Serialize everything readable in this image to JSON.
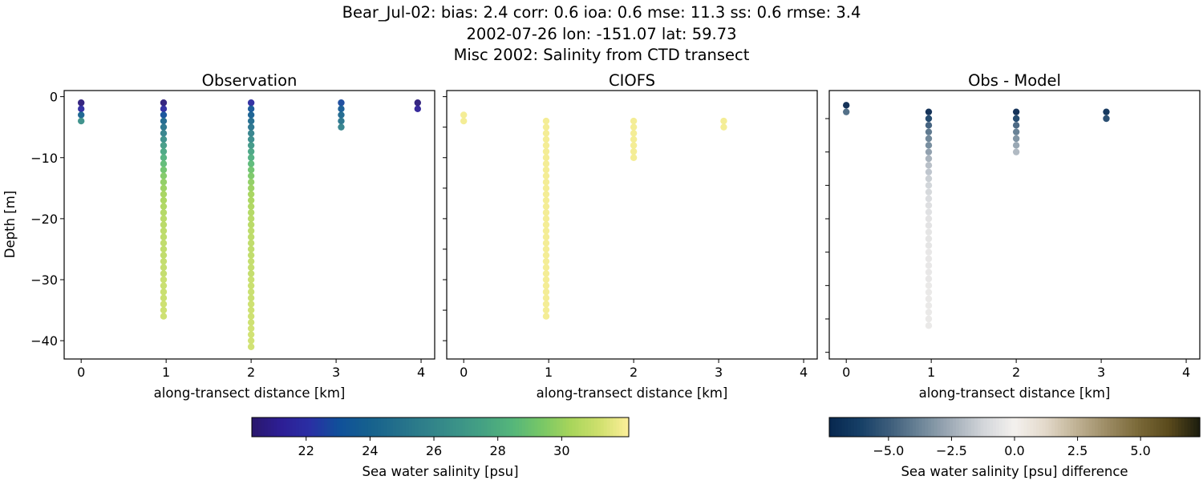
{
  "title_lines": [
    "Bear_Jul-02: bias: 2.4  corr: 0.6  ioa: 0.6  mse: 11.3  ss: 0.6  rmse: 3.4",
    "2002-07-26 lon: -151.07 lat: 59.73",
    "Misc 2002: Salinity from CTD transect"
  ],
  "chart_data": [
    {
      "type": "scatter",
      "title": "Observation",
      "xlabel": "along-transect distance [km]",
      "ylabel": "Depth [m]",
      "xlim": [
        -0.2,
        4.16
      ],
      "ylim": [
        -43,
        1
      ],
      "xticks": [
        "0",
        "1",
        "2",
        "3",
        "4"
      ],
      "yticks": [
        "0",
        "−10",
        "−20",
        "−30",
        "−40"
      ],
      "ytick_values": [
        0,
        -10,
        -20,
        -30,
        -40
      ],
      "colormap": "haline",
      "clim": [
        20.3,
        32.1
      ],
      "profiles": [
        {
          "x": 0,
          "depths": [
            -1,
            -2,
            -3,
            -4
          ],
          "values": [
            20.6,
            21.8,
            24.0,
            26.5
          ]
        },
        {
          "x": 0.97,
          "depths": [
            -1,
            -2,
            -3,
            -4,
            -5,
            -6,
            -7,
            -8,
            -9,
            -10,
            -11,
            -12,
            -13,
            -14,
            -15,
            -16,
            -17,
            -18,
            -19,
            -20,
            -21,
            -22,
            -23,
            -24,
            -25,
            -26,
            -27,
            -28,
            -29,
            -30,
            -31,
            -32,
            -33,
            -34,
            -35,
            -36
          ],
          "values": [
            20.6,
            21.8,
            23.0,
            24.3,
            25.0,
            25.8,
            26.5,
            27.2,
            27.7,
            28.2,
            28.7,
            29.1,
            29.5,
            29.8,
            30.0,
            30.2,
            30.3,
            30.4,
            30.5,
            30.6,
            30.6,
            30.7,
            30.7,
            30.8,
            30.8,
            30.8,
            30.9,
            30.9,
            30.9,
            31.0,
            31.0,
            31.0,
            31.0,
            31.1,
            31.1,
            31.1
          ]
        },
        {
          "x": 2.0,
          "depths": [
            -1,
            -2,
            -3,
            -4,
            -5,
            -6,
            -7,
            -8,
            -9,
            -10,
            -11,
            -12,
            -13,
            -14,
            -15,
            -16,
            -17,
            -18,
            -19,
            -20,
            -21,
            -22,
            -23,
            -24,
            -25,
            -26,
            -27,
            -28,
            -29,
            -30,
            -31,
            -32,
            -33,
            -34,
            -35,
            -36,
            -37,
            -38,
            -39,
            -40,
            -41
          ],
          "values": [
            21.8,
            23.3,
            23.8,
            24.5,
            25.0,
            25.8,
            26.3,
            27.0,
            27.6,
            28.1,
            28.6,
            29.1,
            29.4,
            29.8,
            30.0,
            30.2,
            30.3,
            30.4,
            30.5,
            30.6,
            30.6,
            30.7,
            30.7,
            30.8,
            30.8,
            30.8,
            30.9,
            30.9,
            30.9,
            31.0,
            31.0,
            31.0,
            31.0,
            31.1,
            31.1,
            31.1,
            31.1,
            31.2,
            31.2,
            31.2,
            31.2
          ]
        },
        {
          "x": 3.06,
          "depths": [
            -1,
            -2,
            -3,
            -4,
            -5
          ],
          "values": [
            22.8,
            23.6,
            24.3,
            25.0,
            25.8
          ]
        },
        {
          "x": 3.96,
          "depths": [
            -1,
            -2
          ],
          "values": [
            20.6,
            21.3
          ]
        }
      ]
    },
    {
      "type": "scatter",
      "title": "CIOFS",
      "xlabel": "along-transect distance [km]",
      "xlim": [
        -0.2,
        4.16
      ],
      "ylim": [
        -43,
        1
      ],
      "xticks": [
        "0",
        "1",
        "2",
        "3",
        "4"
      ],
      "ytick_values": [
        0,
        -5,
        -10,
        -15,
        -20,
        -25,
        -30,
        -35,
        -40
      ],
      "colormap": "haline",
      "clim": [
        20.3,
        32.1
      ],
      "profiles": [
        {
          "x": 0,
          "depths": [
            -3,
            -4
          ],
          "values": [
            31.9,
            31.9
          ]
        },
        {
          "x": 0.97,
          "depths": [
            -4,
            -5,
            -6,
            -7,
            -8,
            -9,
            -10,
            -11,
            -12,
            -13,
            -14,
            -15,
            -16,
            -17,
            -18,
            -19,
            -20,
            -21,
            -22,
            -23,
            -24,
            -25,
            -26,
            -27,
            -28,
            -29,
            -30,
            -31,
            -32,
            -33,
            -34,
            -35,
            -36
          ],
          "values": [
            31.9,
            31.9,
            31.9,
            31.9,
            31.9,
            31.9,
            31.9,
            31.9,
            31.9,
            31.9,
            31.9,
            31.9,
            31.9,
            31.9,
            31.9,
            31.9,
            31.9,
            31.9,
            31.9,
            31.9,
            31.9,
            31.9,
            31.9,
            31.9,
            31.9,
            31.9,
            31.9,
            31.9,
            31.9,
            31.9,
            31.9,
            31.9,
            31.9
          ]
        },
        {
          "x": 2.0,
          "depths": [
            -4,
            -5,
            -6,
            -7,
            -8,
            -9,
            -10
          ],
          "values": [
            31.9,
            31.9,
            31.9,
            31.9,
            31.9,
            31.9,
            31.9
          ]
        },
        {
          "x": 3.06,
          "depths": [
            -4,
            -5
          ],
          "values": [
            31.9,
            31.9
          ]
        }
      ]
    },
    {
      "type": "scatter",
      "title": "Obs - Model",
      "xlabel": "along-transect distance [km]",
      "xlim": [
        -0.2,
        4.16
      ],
      "ylim": [
        -41,
        -0.8
      ],
      "xticks": [
        "0",
        "1",
        "2",
        "3",
        "4"
      ],
      "ytick_values": [
        -5,
        -10,
        -15,
        -20,
        -25,
        -30,
        -35,
        -40
      ],
      "colormap": "diff",
      "clim": [
        -7.35,
        7.35
      ],
      "profiles": [
        {
          "x": 0,
          "depths": [
            -3,
            -4
          ],
          "values": [
            -7.3,
            -4.6
          ]
        },
        {
          "x": 0.97,
          "depths": [
            -4,
            -5,
            -6,
            -7,
            -8,
            -9,
            -10,
            -11,
            -12,
            -13,
            -14,
            -15,
            -16,
            -17,
            -18,
            -19,
            -20,
            -21,
            -22,
            -23,
            -24,
            -25,
            -26,
            -27,
            -28,
            -29,
            -30,
            -31,
            -32,
            -33,
            -34,
            -35,
            -36
          ],
          "values": [
            -7.3,
            -6.0,
            -5.0,
            -4.3,
            -3.8,
            -3.6,
            -3.0,
            -2.4,
            -2.0,
            -1.8,
            -1.5,
            -1.3,
            -1.2,
            -1.0,
            -0.9,
            -0.8,
            -0.7,
            -0.7,
            -0.6,
            -0.6,
            -0.6,
            -0.5,
            -0.5,
            -0.5,
            -0.5,
            -0.5,
            -0.4,
            -0.4,
            -0.4,
            -0.4,
            -0.4,
            -0.4,
            -0.4
          ]
        },
        {
          "x": 2.0,
          "depths": [
            -4,
            -5,
            -6,
            -7,
            -8,
            -9,
            -10
          ],
          "values": [
            -7.3,
            -6.0,
            -4.8,
            -4.0,
            -3.4,
            -2.8,
            -2.2
          ]
        },
        {
          "x": 3.06,
          "depths": [
            -4,
            -5
          ],
          "values": [
            -7.0,
            -5.8
          ]
        }
      ]
    }
  ],
  "colorbars": [
    {
      "label": "Sea water salinity [psu]",
      "colormap": "haline",
      "range": [
        20.3,
        32.1
      ],
      "ticks": [
        22,
        24,
        26,
        28,
        30
      ],
      "tick_labels": [
        "22",
        "24",
        "26",
        "28",
        "30"
      ]
    },
    {
      "label": "Sea water salinity [psu] difference",
      "colormap": "diff",
      "range": [
        -7.35,
        7.35
      ],
      "ticks": [
        -5,
        -2.5,
        0,
        2.5,
        5
      ],
      "tick_labels": [
        "−5.0",
        "−2.5",
        "0.0",
        "2.5",
        "5.0"
      ]
    }
  ],
  "colormaps": {
    "haline": [
      "#2a186c",
      "#2d1e95",
      "#2a2fa4",
      "#10509a",
      "#15608e",
      "#236f8b",
      "#2f808a",
      "#3a9188",
      "#45a283",
      "#55b67a",
      "#78c766",
      "#a8d55b",
      "#cfe06e",
      "#fdef9a"
    ],
    "diff": [
      "#07274f",
      "#163f66",
      "#3f5f7c",
      "#6f8799",
      "#a3aeb9",
      "#d3d6da",
      "#f4f1ee",
      "#e3d9ca",
      "#c0b294",
      "#9c8b64",
      "#7a6938",
      "#5a4a1c",
      "#1c1d0e"
    ]
  }
}
